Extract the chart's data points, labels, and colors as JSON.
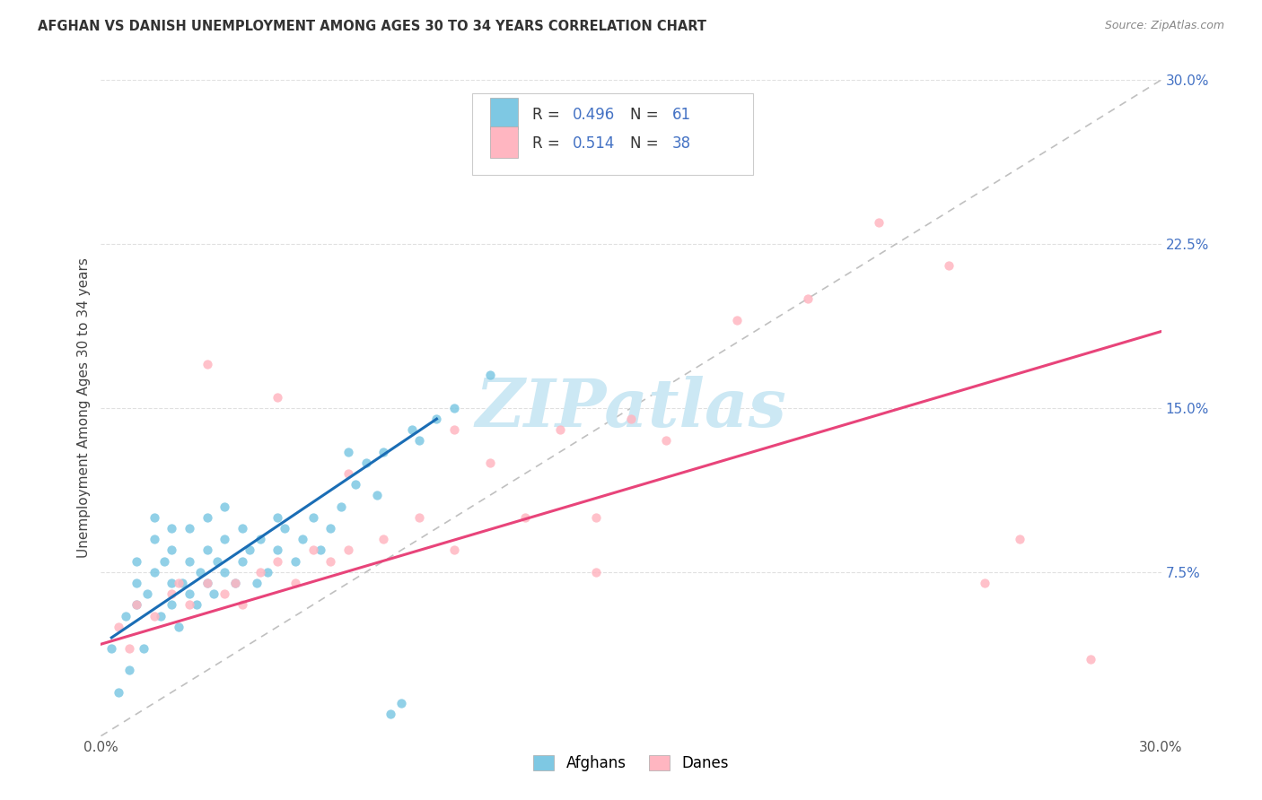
{
  "title": "AFGHAN VS DANISH UNEMPLOYMENT AMONG AGES 30 TO 34 YEARS CORRELATION CHART",
  "source": "Source: ZipAtlas.com",
  "ylabel": "Unemployment Among Ages 30 to 34 years",
  "xlim": [
    0.0,
    0.3
  ],
  "ylim": [
    0.0,
    0.3
  ],
  "xticks": [
    0.0,
    0.3
  ],
  "xticklabels": [
    "0.0%",
    "30.0%"
  ],
  "right_yticks": [
    0.075,
    0.15,
    0.225,
    0.3
  ],
  "right_yticklabels": [
    "7.5%",
    "15.0%",
    "22.5%",
    "30.0%"
  ],
  "afghan_color": "#7ec8e3",
  "dane_color": "#ffb6c1",
  "afghan_line_color": "#1a6db5",
  "dane_line_color": "#e8447a",
  "diagonal_color": "#c0c0c0",
  "watermark": "ZIPatlas",
  "watermark_color": "#cce8f4",
  "background_color": "#ffffff",
  "grid_color": "#e0e0e0",
  "grid_yticks": [
    0.075,
    0.15,
    0.225,
    0.3
  ],
  "afghan_line_x": [
    0.003,
    0.095
  ],
  "afghan_line_y": [
    0.045,
    0.145
  ],
  "dane_line_x": [
    0.0,
    0.3
  ],
  "dane_line_y": [
    0.042,
    0.185
  ],
  "afghans_scatter_x": [
    0.003,
    0.005,
    0.007,
    0.008,
    0.01,
    0.01,
    0.01,
    0.012,
    0.013,
    0.015,
    0.015,
    0.015,
    0.017,
    0.018,
    0.02,
    0.02,
    0.02,
    0.02,
    0.022,
    0.023,
    0.025,
    0.025,
    0.025,
    0.027,
    0.028,
    0.03,
    0.03,
    0.03,
    0.032,
    0.033,
    0.035,
    0.035,
    0.035,
    0.038,
    0.04,
    0.04,
    0.042,
    0.044,
    0.045,
    0.047,
    0.05,
    0.05,
    0.052,
    0.055,
    0.057,
    0.06,
    0.062,
    0.065,
    0.068,
    0.07,
    0.072,
    0.075,
    0.078,
    0.08,
    0.082,
    0.085,
    0.088,
    0.09,
    0.095,
    0.1,
    0.11
  ],
  "afghans_scatter_y": [
    0.04,
    0.02,
    0.055,
    0.03,
    0.06,
    0.07,
    0.08,
    0.04,
    0.065,
    0.075,
    0.09,
    0.1,
    0.055,
    0.08,
    0.06,
    0.07,
    0.085,
    0.095,
    0.05,
    0.07,
    0.065,
    0.08,
    0.095,
    0.06,
    0.075,
    0.07,
    0.085,
    0.1,
    0.065,
    0.08,
    0.075,
    0.09,
    0.105,
    0.07,
    0.08,
    0.095,
    0.085,
    0.07,
    0.09,
    0.075,
    0.085,
    0.1,
    0.095,
    0.08,
    0.09,
    0.1,
    0.085,
    0.095,
    0.105,
    0.13,
    0.115,
    0.125,
    0.11,
    0.13,
    0.01,
    0.015,
    0.14,
    0.135,
    0.145,
    0.15,
    0.165
  ],
  "danes_scatter_x": [
    0.005,
    0.008,
    0.01,
    0.015,
    0.02,
    0.022,
    0.025,
    0.03,
    0.035,
    0.038,
    0.04,
    0.045,
    0.05,
    0.055,
    0.06,
    0.065,
    0.07,
    0.08,
    0.09,
    0.1,
    0.11,
    0.12,
    0.13,
    0.14,
    0.15,
    0.16,
    0.18,
    0.2,
    0.22,
    0.24,
    0.25,
    0.26,
    0.28,
    0.03,
    0.05,
    0.07,
    0.1,
    0.14
  ],
  "danes_scatter_y": [
    0.05,
    0.04,
    0.06,
    0.055,
    0.065,
    0.07,
    0.06,
    0.07,
    0.065,
    0.07,
    0.06,
    0.075,
    0.08,
    0.07,
    0.085,
    0.08,
    0.085,
    0.09,
    0.1,
    0.085,
    0.125,
    0.1,
    0.14,
    0.1,
    0.145,
    0.135,
    0.19,
    0.2,
    0.235,
    0.215,
    0.07,
    0.09,
    0.035,
    0.17,
    0.155,
    0.12,
    0.14,
    0.075
  ]
}
